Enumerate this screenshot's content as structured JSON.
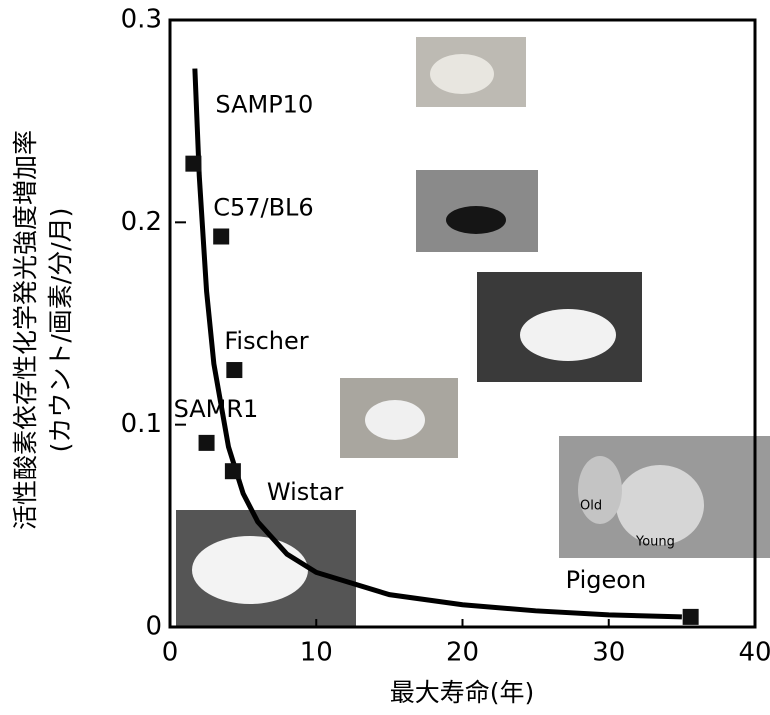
{
  "chart_data": {
    "type": "scatter",
    "ylabel": [
      "活性酸素依存性化学発光強度増加率",
      "(カウント/画素/分/月)"
    ],
    "xlabel": "最大寿命(年)",
    "xlim": [
      0,
      40
    ],
    "xticks": [
      0,
      10,
      20,
      30,
      40
    ],
    "ylim": [
      0,
      0.3
    ],
    "yticks": [
      0,
      0.1,
      0.2,
      0.3
    ],
    "series": [
      {
        "labels": [
          "SAMP10",
          "C57/BL6",
          "Fischer",
          "SAMR1",
          "Wistar",
          "Pigeon"
        ],
        "x": [
          1.6,
          3.5,
          4.4,
          2.5,
          4.3,
          35.6
        ],
        "values": [
          0.229,
          0.193,
          0.127,
          0.091,
          0.077,
          0.005
        ],
        "color": "#111111"
      }
    ],
    "curve": {
      "x": [
        1.7,
        2,
        2.5,
        3,
        4,
        5,
        6,
        8,
        10,
        15,
        20,
        25,
        30,
        35
      ],
      "values": [
        0.276,
        0.223,
        0.166,
        0.13,
        0.089,
        0.066,
        0.052,
        0.036,
        0.027,
        0.016,
        0.011,
        0.008,
        0.006,
        0.005
      ],
      "color": "#000000"
    },
    "photo_labels": [
      "Old",
      "Young"
    ]
  }
}
